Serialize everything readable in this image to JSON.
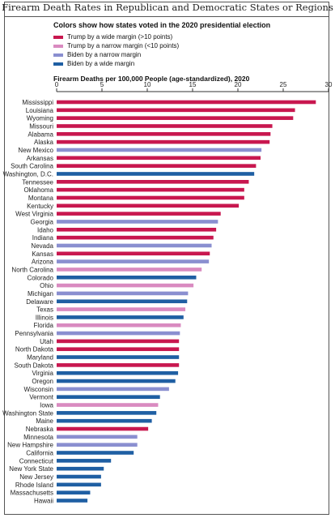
{
  "chart_data": {
    "type": "bar",
    "orientation": "horizontal",
    "title": "Firearm Death Rates in Republican and Democratic States or Regions",
    "legend_title": "Colors show how states voted in the 2020 presidential election",
    "xlabel": "Firearm Deaths per 100,000 People (age-standardized), 2020",
    "xlim": [
      0,
      30
    ],
    "xticks": [
      0,
      5,
      10,
      15,
      20,
      25,
      30
    ],
    "grid": false,
    "legend_placement": "top-left",
    "groups": [
      {
        "key": "tw",
        "name": "Trump by a wide margin (>10 points)",
        "color": "#c8174f"
      },
      {
        "key": "tn",
        "name": "Trump by a narrow margin (<10 points)",
        "color": "#d98ac0"
      },
      {
        "key": "bn",
        "name": "Biden by a narrow margin",
        "color": "#8a8fd0"
      },
      {
        "key": "bw",
        "name": "Biden by a wide margin",
        "color": "#1f5fa3"
      }
    ],
    "categories": [
      "Mississippi",
      "Louisiana",
      "Wyoming",
      "Missouri",
      "Alabama",
      "Alaska",
      "New Mexico",
      "Arkansas",
      "South Carolina",
      "Washington, D.C.",
      "Tennessee",
      "Oklahoma",
      "Montana",
      "Kentucky",
      "West Virginia",
      "Georgia",
      "Idaho",
      "Indiana",
      "Nevada",
      "Kansas",
      "Arizona",
      "North Carolina",
      "Colorado",
      "Ohio",
      "Michigan",
      "Delaware",
      "Texas",
      "Illinois",
      "Florida",
      "Pennsylvania",
      "Utah",
      "North Dakota",
      "Maryland",
      "South Dakota",
      "Virginia",
      "Oregon",
      "Wisconsin",
      "Vermont",
      "Iowa",
      "Washington State",
      "Maine",
      "Nebraska",
      "Minnesota",
      "New Hampshire",
      "California",
      "Connecticut",
      "New York State",
      "New Jersey",
      "Rhode Island",
      "Massachusetts",
      "Hawaii"
    ],
    "values": [
      28.6,
      26.3,
      26.1,
      23.8,
      23.6,
      23.5,
      22.6,
      22.5,
      22.0,
      21.8,
      21.2,
      20.7,
      20.7,
      20.1,
      18.1,
      17.8,
      17.6,
      17.3,
      17.1,
      16.9,
      16.8,
      16.0,
      15.4,
      15.1,
      14.5,
      14.4,
      14.2,
      14.0,
      13.7,
      13.6,
      13.5,
      13.5,
      13.5,
      13.5,
      13.4,
      13.1,
      12.4,
      11.4,
      11.2,
      11.0,
      10.5,
      10.1,
      8.9,
      8.9,
      8.5,
      6.0,
      5.2,
      4.9,
      4.9,
      3.7,
      3.4
    ],
    "vote_groups": [
      "tw",
      "tw",
      "tw",
      "tw",
      "tw",
      "tw",
      "bn",
      "tw",
      "tw",
      "bw",
      "tw",
      "tw",
      "tw",
      "tw",
      "tw",
      "bn",
      "tw",
      "tw",
      "bn",
      "tw",
      "bn",
      "tn",
      "bw",
      "tn",
      "bn",
      "bw",
      "tn",
      "bw",
      "tn",
      "bn",
      "tw",
      "tw",
      "bw",
      "tw",
      "bw",
      "bw",
      "bn",
      "bw",
      "tn",
      "bw",
      "bw",
      "tw",
      "bn",
      "bn",
      "bw",
      "bw",
      "bw",
      "bw",
      "bw",
      "bw",
      "bw"
    ]
  }
}
